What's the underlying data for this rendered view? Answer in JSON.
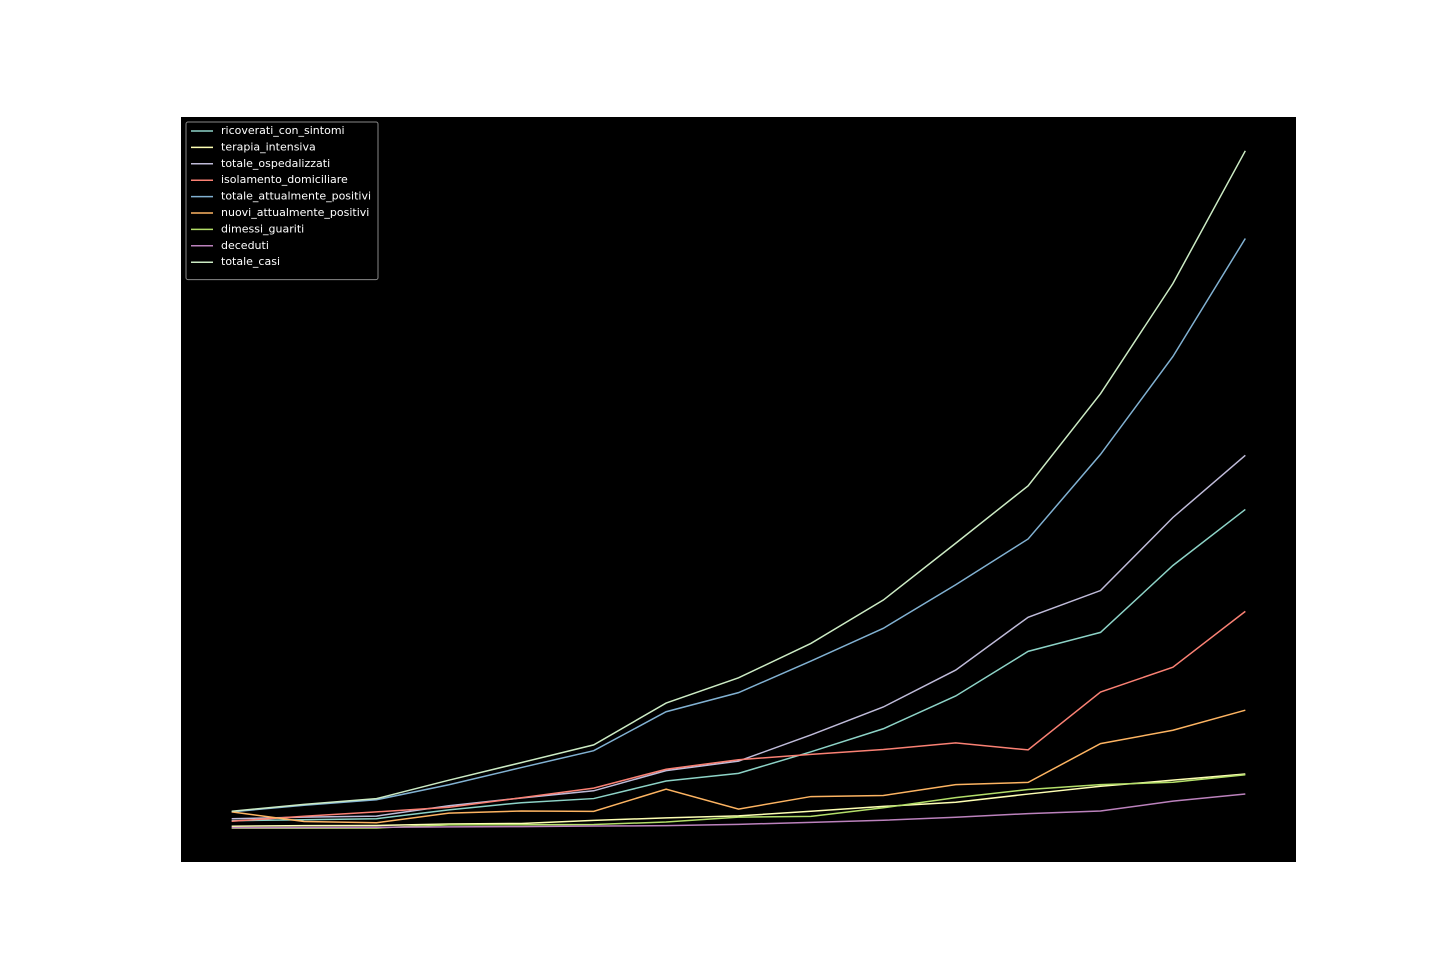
{
  "chart_data": {
    "type": "line",
    "x": [
      0,
      1,
      2,
      3,
      4,
      5,
      6,
      7,
      8,
      9,
      10,
      11,
      12,
      13,
      14
    ],
    "xlim": [
      -0.7,
      14.7
    ],
    "ylim": [
      -458,
      9630
    ],
    "legend": "upper left",
    "series": [
      {
        "name": "ricoverati_con_sintomi",
        "color": "#8dd3c7",
        "values": [
          101,
          114,
          128,
          248,
          345,
          401,
          639,
          742,
          1034,
          1346,
          1790,
          2394,
          2651,
          3557,
          4316
        ]
      },
      {
        "name": "terapia_intensiva",
        "color": "#feffb3",
        "values": [
          26,
          35,
          36,
          56,
          64,
          105,
          140,
          166,
          229,
          295,
          351,
          462,
          567,
          650,
          733
        ]
      },
      {
        "name": "totale_ospedalizzati",
        "color": "#bfbbd9",
        "values": [
          127,
          150,
          164,
          304,
          409,
          506,
          779,
          908,
          1263,
          1641,
          2141,
          2856,
          3218,
          4207,
          5049
        ]
      },
      {
        "name": "isolamento_domiciliare",
        "color": "#fa8174",
        "values": [
          94,
          162,
          221,
          284,
          412,
          543,
          798,
          927,
          1000,
          1065,
          1155,
          1060,
          1843,
          2180,
          2936
        ]
      },
      {
        "name": "totale_attualmente_positivi",
        "color": "#81b1d2",
        "values": [
          221,
          311,
          385,
          588,
          821,
          1049,
          1577,
          1835,
          2263,
          2706,
          3296,
          3916,
          5061,
          6387,
          7985
        ]
      },
      {
        "name": "nuovi_attualmente_positivi",
        "color": "#fdb462",
        "values": [
          221,
          90,
          74,
          203,
          233,
          228,
          528,
          258,
          428,
          443,
          590,
          620,
          1145,
          1326,
          1598
        ]
      },
      {
        "name": "dimessi_guariti",
        "color": "#b3de69",
        "values": [
          1,
          1,
          3,
          45,
          46,
          50,
          83,
          149,
          160,
          276,
          414,
          523,
          589,
          622,
          724
        ]
      },
      {
        "name": "deceduti",
        "color": "#bc82bd",
        "values": [
          7,
          10,
          12,
          17,
          21,
          29,
          34,
          52,
          79,
          107,
          148,
          197,
          233,
          366,
          463
        ]
      },
      {
        "name": "totale_casi",
        "color": "#ccebc4",
        "values": [
          229,
          322,
          400,
          650,
          888,
          1128,
          1694,
          2036,
          2502,
          3089,
          3858,
          4636,
          5883,
          7375,
          9172
        ]
      }
    ]
  }
}
